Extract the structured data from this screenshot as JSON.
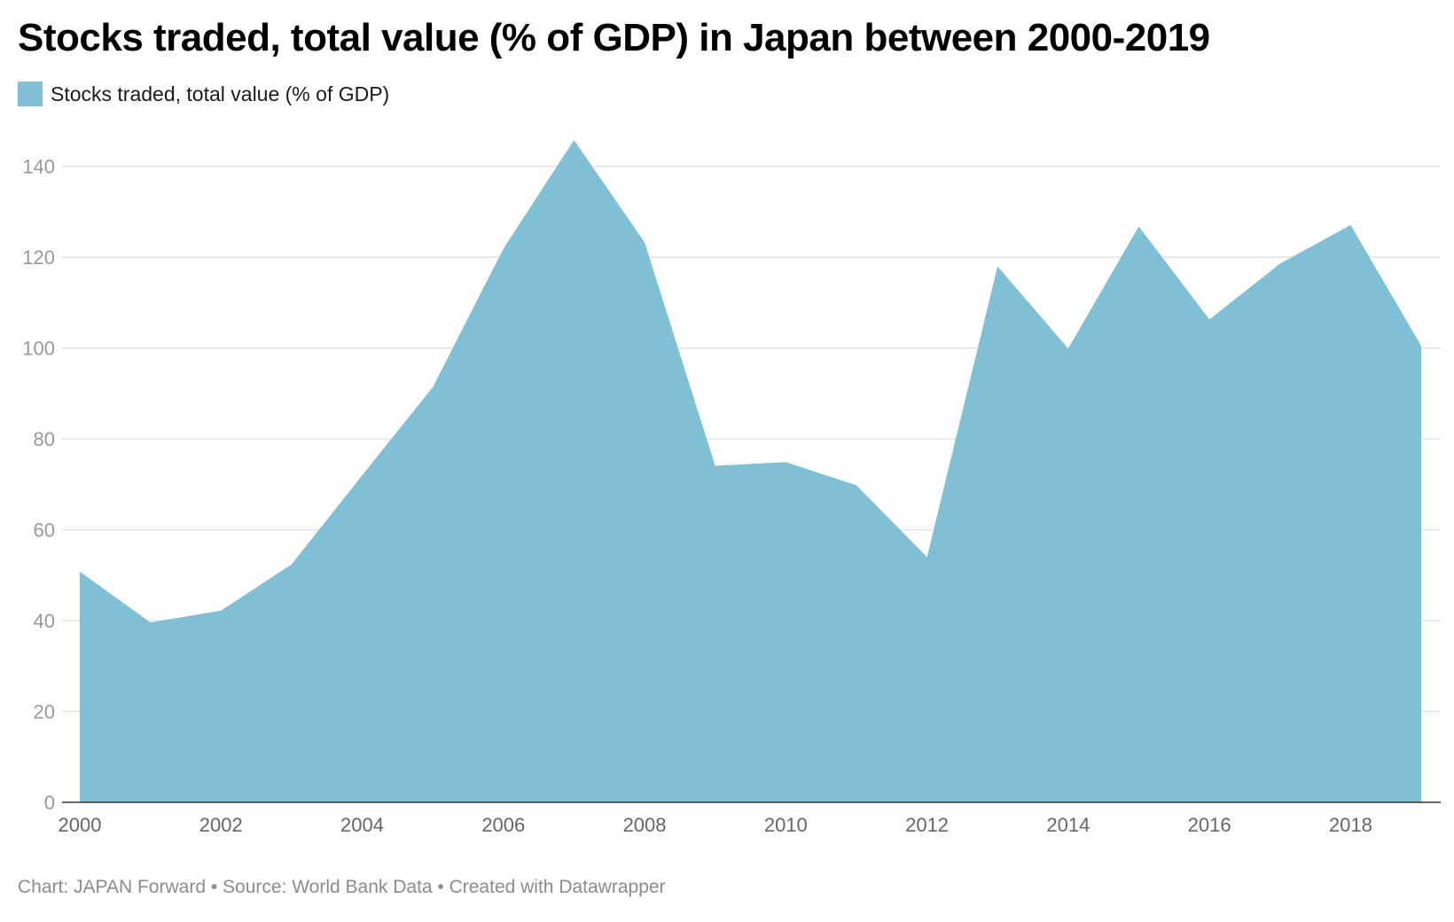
{
  "chart_data": {
    "type": "area",
    "title": "Stocks traded, total value (% of GDP) in Japan between 2000-2019",
    "xlabel": "",
    "ylabel": "",
    "x": [
      2000,
      2001,
      2002,
      2003,
      2004,
      2005,
      2006,
      2007,
      2008,
      2009,
      2010,
      2011,
      2012,
      2013,
      2014,
      2015,
      2016,
      2017,
      2018,
      2019
    ],
    "series": [
      {
        "name": "Stocks traded, total value (% of GDP)",
        "color": "#80c0d7",
        "values": [
          50.8,
          39.6,
          42.2,
          52.4,
          72.0,
          91.4,
          121.9,
          145.8,
          123.3,
          74.1,
          74.9,
          69.8,
          54.0,
          118.0,
          99.9,
          126.8,
          106.3,
          118.6,
          127.1,
          100.5
        ]
      }
    ],
    "ylim": [
      0,
      145.8
    ],
    "yticks": [
      0,
      20,
      40,
      60,
      80,
      100,
      120,
      140
    ],
    "xticks": [
      2000,
      2002,
      2004,
      2006,
      2008,
      2010,
      2012,
      2014,
      2016,
      2018
    ],
    "grid": true,
    "legend_position": "top-left"
  },
  "legend": {
    "label": "Stocks traded, total value (% of GDP)",
    "color": "#80c0d7"
  },
  "footer": {
    "text": "Chart: JAPAN Forward • Source: World Bank Data • Created with Datawrapper"
  },
  "colors": {
    "area": "#80c0d7",
    "gridline": "#e0e0e0",
    "baseline": "#333333",
    "tick_text": "#999999"
  }
}
